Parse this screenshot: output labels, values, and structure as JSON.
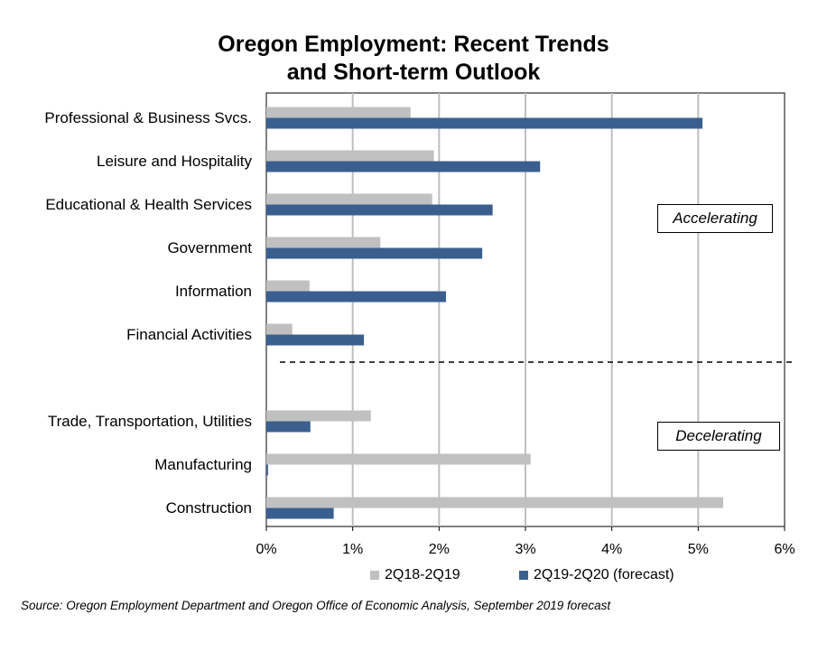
{
  "title_line1": "Oregon Employment: Recent Trends",
  "title_line2": "and Short-term Outlook",
  "source": "Source: Oregon Employment Department and Oregon Office of Economic Analysis, September 2019 forecast",
  "annotations": {
    "accelerating": "Accelerating",
    "decelerating": "Decelerating"
  },
  "colors": {
    "series1": "#C0C0C0",
    "series2": "#3A5F8F",
    "grid": "#BFBFBF"
  },
  "chart_data": {
    "type": "bar",
    "orientation": "horizontal",
    "categories": [
      "Professional & Business Svcs.",
      "Leisure and Hospitality",
      "Educational & Health Services",
      "Government",
      "Information",
      "Financial Activities",
      "Trade, Transportation, Utilities",
      "Manufacturing",
      "Construction"
    ],
    "groups": [
      {
        "name": "Accelerating",
        "categories": [
          0,
          1,
          2,
          3,
          4,
          5
        ]
      },
      {
        "name": "Decelerating",
        "categories": [
          6,
          7,
          8
        ]
      }
    ],
    "series": [
      {
        "name": "2Q18-2Q19",
        "values": [
          1.67,
          1.94,
          1.92,
          1.32,
          0.5,
          0.3,
          1.21,
          3.06,
          5.29
        ]
      },
      {
        "name": "2Q19-2Q20 (forecast)",
        "values": [
          5.05,
          3.17,
          2.62,
          2.5,
          2.08,
          1.13,
          0.51,
          0.02,
          0.78
        ]
      }
    ],
    "xlim": [
      0,
      6
    ],
    "xticks": [
      "0%",
      "1%",
      "2%",
      "3%",
      "4%",
      "5%",
      "6%"
    ],
    "grid": true,
    "legend": "bottom"
  }
}
